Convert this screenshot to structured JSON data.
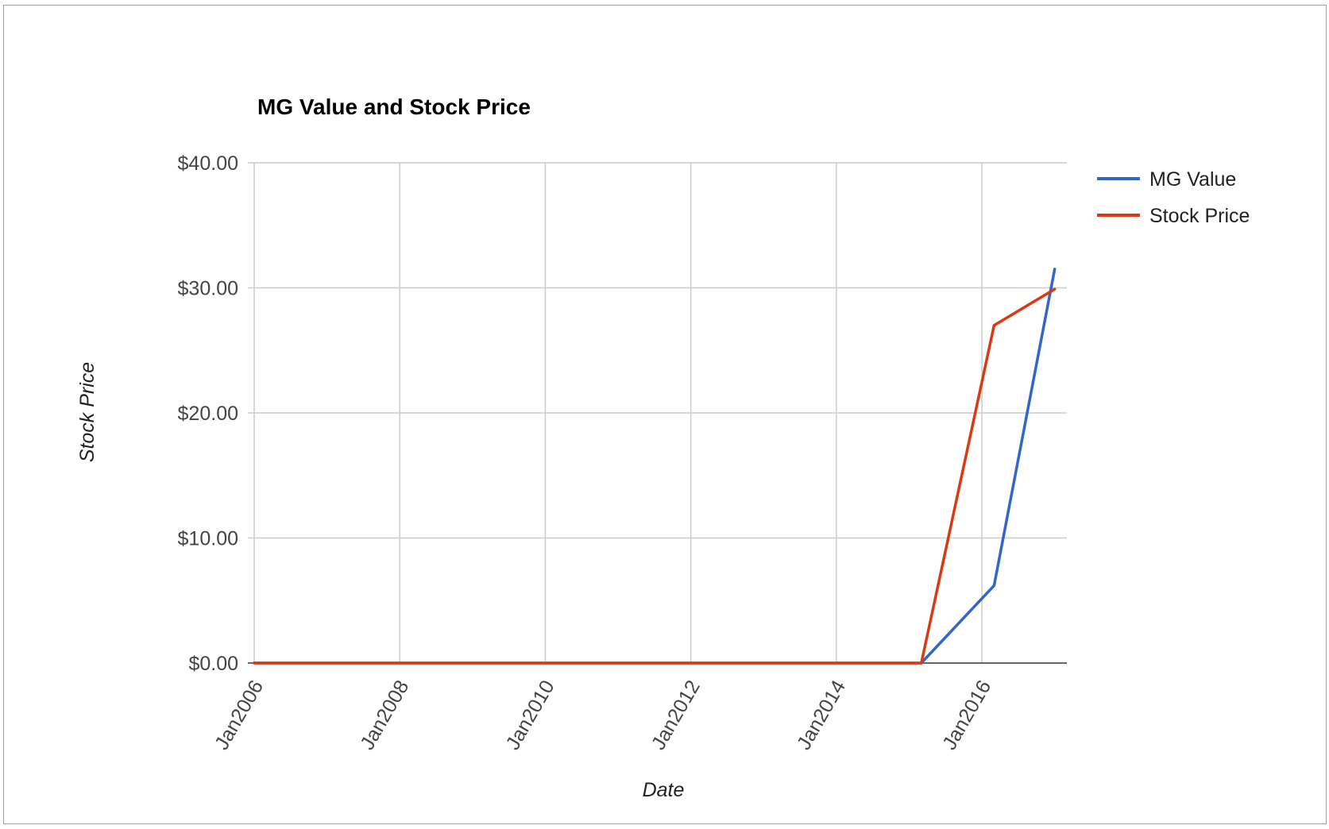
{
  "chart_data": {
    "type": "line",
    "title": "MG Value and Stock Price",
    "xlabel": "Date",
    "ylabel": "Stock Price",
    "x_ticks": [
      "Jan2006",
      "Jan2008",
      "Jan2010",
      "Jan2012",
      "Jan2014",
      "Jan2016"
    ],
    "x": [
      "2006-01",
      "2007-01",
      "2008-01",
      "2009-01",
      "2010-01",
      "2011-01",
      "2012-01",
      "2013-01",
      "2014-01",
      "2015-03",
      "2016-03",
      "2017-01"
    ],
    "xlim": [
      "2006-01",
      "2017-03"
    ],
    "y_ticks": [
      "$0.00",
      "$10.00",
      "$20.00",
      "$30.00",
      "$40.00"
    ],
    "ylim": [
      0,
      40
    ],
    "grid": true,
    "legend_position": "right",
    "series": [
      {
        "name": "MG Value",
        "color": "#3366cc",
        "values": [
          0,
          0,
          0,
          0,
          0,
          0,
          0,
          0,
          0,
          0,
          6.2,
          31.5
        ]
      },
      {
        "name": "Stock Price",
        "color": "#dc3912",
        "values": [
          0,
          0,
          0,
          0,
          0,
          0,
          0,
          0,
          0,
          0,
          27.0,
          29.9
        ]
      }
    ]
  }
}
